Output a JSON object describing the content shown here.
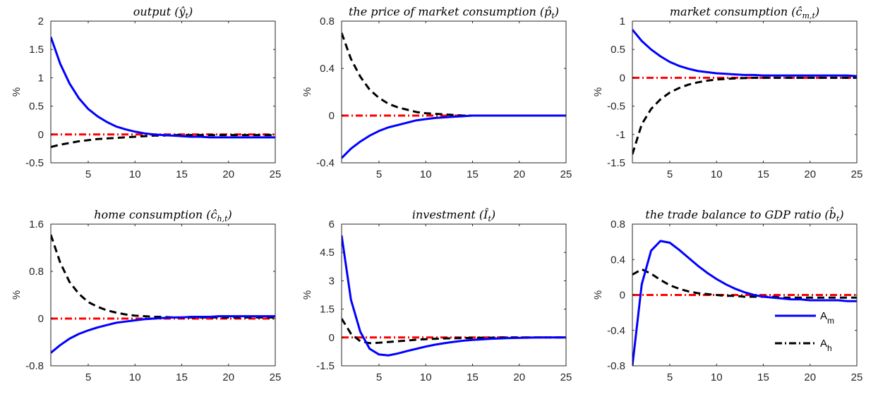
{
  "legend": {
    "entries": [
      {
        "base": "A",
        "sub": "m",
        "series": "A_m"
      },
      {
        "base": "A",
        "sub": "h",
        "series": "A_h"
      }
    ]
  },
  "colors": {
    "A_m": "#0000ff",
    "A_h": "#000000",
    "zero": "#ff0000",
    "axis": "#262626"
  },
  "chart_data": [
    {
      "type": "line",
      "title": "output (ŷ_t)",
      "title_parts": {
        "text": "output (",
        "sym": "ŷ",
        "sub": "t",
        "close": ")"
      },
      "xlabel": "",
      "ylabel": "%",
      "xlim": [
        1,
        25
      ],
      "ylim": [
        -0.5,
        2
      ],
      "xticks": [
        5,
        10,
        15,
        20,
        25
      ],
      "yticks": [
        -0.5,
        0,
        0.5,
        1,
        1.5,
        2
      ],
      "ytick_labels": [
        "-0.5",
        "0",
        "0.5",
        "1",
        "1.5",
        "2"
      ],
      "x": [
        1,
        2,
        3,
        4,
        5,
        6,
        7,
        8,
        9,
        10,
        11,
        12,
        13,
        14,
        15,
        16,
        17,
        18,
        19,
        20,
        21,
        22,
        23,
        24,
        25
      ],
      "series": [
        {
          "key": "A_m",
          "style": "solid",
          "values": [
            1.72,
            1.25,
            0.9,
            0.64,
            0.45,
            0.32,
            0.22,
            0.14,
            0.09,
            0.05,
            0.02,
            0.0,
            -0.01,
            -0.02,
            -0.03,
            -0.04,
            -0.04,
            -0.05,
            -0.05,
            -0.05,
            -0.05,
            -0.05,
            -0.05,
            -0.05,
            -0.05
          ]
        },
        {
          "key": "A_h",
          "style": "dashed",
          "values": [
            -0.22,
            -0.18,
            -0.15,
            -0.12,
            -0.1,
            -0.08,
            -0.07,
            -0.06,
            -0.05,
            -0.04,
            -0.03,
            -0.02,
            -0.02,
            -0.01,
            -0.01,
            -0.01,
            -0.01,
            -0.01,
            -0.01,
            -0.01,
            -0.01,
            -0.01,
            -0.01,
            -0.01,
            -0.01
          ]
        },
        {
          "key": "zero",
          "style": "dashdot",
          "values": [
            0,
            0,
            0,
            0,
            0,
            0,
            0,
            0,
            0,
            0,
            0,
            0,
            0,
            0,
            0,
            0,
            0,
            0,
            0,
            0,
            0,
            0,
            0,
            0,
            0
          ]
        }
      ]
    },
    {
      "type": "line",
      "title": "the price of market consumption (p̂_t)",
      "title_parts": {
        "text": "the price of market consumption (",
        "sym": "p̂",
        "sub": "t",
        "close": ")"
      },
      "xlabel": "",
      "ylabel": "%",
      "xlim": [
        1,
        25
      ],
      "ylim": [
        -0.4,
        0.8
      ],
      "xticks": [
        5,
        10,
        15,
        20,
        25
      ],
      "yticks": [
        -0.4,
        0,
        0.4,
        0.8
      ],
      "ytick_labels": [
        "-0.4",
        "0",
        "0.4",
        "0.8"
      ],
      "x": [
        1,
        2,
        3,
        4,
        5,
        6,
        7,
        8,
        9,
        10,
        11,
        12,
        13,
        14,
        15,
        16,
        17,
        18,
        19,
        20,
        21,
        22,
        23,
        24,
        25
      ],
      "series": [
        {
          "key": "A_m",
          "style": "solid",
          "values": [
            -0.36,
            -0.28,
            -0.22,
            -0.17,
            -0.13,
            -0.1,
            -0.08,
            -0.06,
            -0.04,
            -0.03,
            -0.02,
            -0.015,
            -0.01,
            -0.005,
            0,
            0,
            0,
            0,
            0,
            0,
            0,
            0,
            0,
            0,
            0
          ]
        },
        {
          "key": "A_h",
          "style": "dashed",
          "values": [
            0.7,
            0.48,
            0.33,
            0.22,
            0.15,
            0.1,
            0.07,
            0.05,
            0.03,
            0.02,
            0.015,
            0.01,
            0.005,
            0,
            0,
            0,
            0,
            0,
            0,
            0,
            0,
            0,
            0,
            0,
            0
          ]
        },
        {
          "key": "zero",
          "style": "dashdot",
          "values": [
            0,
            0,
            0,
            0,
            0,
            0,
            0,
            0,
            0,
            0,
            0,
            0,
            0,
            0,
            0,
            0,
            0,
            0,
            0,
            0,
            0,
            0,
            0,
            0,
            0
          ]
        }
      ]
    },
    {
      "type": "line",
      "title": "market consumption (ĉ_m,t)",
      "title_parts": {
        "text": "market consumption (",
        "sym": "ĉ",
        "sub": "m,t",
        "close": ")"
      },
      "xlabel": "",
      "ylabel": "%",
      "xlim": [
        1,
        25
      ],
      "ylim": [
        -1.5,
        1
      ],
      "xticks": [
        5,
        10,
        15,
        20,
        25
      ],
      "yticks": [
        -1.5,
        -1,
        -0.5,
        0,
        0.5,
        1
      ],
      "ytick_labels": [
        "-1.5",
        "-1",
        "-0.5",
        "0",
        "0.5",
        "1"
      ],
      "x": [
        1,
        2,
        3,
        4,
        5,
        6,
        7,
        8,
        9,
        10,
        11,
        12,
        13,
        14,
        15,
        16,
        17,
        18,
        19,
        20,
        21,
        22,
        23,
        24,
        25
      ],
      "series": [
        {
          "key": "A_m",
          "style": "solid",
          "values": [
            0.85,
            0.65,
            0.5,
            0.38,
            0.28,
            0.21,
            0.16,
            0.12,
            0.1,
            0.08,
            0.07,
            0.06,
            0.05,
            0.05,
            0.04,
            0.04,
            0.04,
            0.04,
            0.04,
            0.04,
            0.04,
            0.04,
            0.04,
            0.04,
            0.03
          ]
        },
        {
          "key": "A_h",
          "style": "dashed",
          "values": [
            -1.35,
            -0.82,
            -0.55,
            -0.38,
            -0.26,
            -0.18,
            -0.12,
            -0.08,
            -0.05,
            -0.03,
            -0.02,
            -0.01,
            -0.005,
            0,
            0,
            0,
            0,
            0,
            0,
            0,
            0,
            0,
            0,
            0,
            0
          ]
        },
        {
          "key": "zero",
          "style": "dashdot",
          "values": [
            0,
            0,
            0,
            0,
            0,
            0,
            0,
            0,
            0,
            0,
            0,
            0,
            0,
            0,
            0,
            0,
            0,
            0,
            0,
            0,
            0,
            0,
            0,
            0,
            0
          ]
        }
      ]
    },
    {
      "type": "line",
      "title": "home consumption (ĉ_h,t)",
      "title_parts": {
        "text": "home consumption (",
        "sym": "ĉ",
        "sub": "h,t",
        "close": ")"
      },
      "xlabel": "",
      "ylabel": "%",
      "xlim": [
        1,
        25
      ],
      "ylim": [
        -0.8,
        1.6
      ],
      "xticks": [
        5,
        10,
        15,
        20,
        25
      ],
      "yticks": [
        -0.8,
        0,
        0.8,
        1.6
      ],
      "ytick_labels": [
        "-0.8",
        "0",
        "0.8",
        "1.6"
      ],
      "x": [
        1,
        2,
        3,
        4,
        5,
        6,
        7,
        8,
        9,
        10,
        11,
        12,
        13,
        14,
        15,
        16,
        17,
        18,
        19,
        20,
        21,
        22,
        23,
        24,
        25
      ],
      "series": [
        {
          "key": "A_m",
          "style": "solid",
          "values": [
            -0.58,
            -0.45,
            -0.34,
            -0.26,
            -0.2,
            -0.15,
            -0.11,
            -0.07,
            -0.05,
            -0.03,
            -0.01,
            0,
            0.01,
            0.02,
            0.02,
            0.03,
            0.03,
            0.03,
            0.04,
            0.04,
            0.04,
            0.04,
            0.04,
            0.04,
            0.04
          ]
        },
        {
          "key": "A_h",
          "style": "dashed",
          "values": [
            1.42,
            0.95,
            0.62,
            0.42,
            0.28,
            0.2,
            0.14,
            0.1,
            0.07,
            0.05,
            0.04,
            0.03,
            0.03,
            0.02,
            0.02,
            0.02,
            0.02,
            0.02,
            0.02,
            0.02,
            0.02,
            0.02,
            0.02,
            0.02,
            0.02
          ]
        },
        {
          "key": "zero",
          "style": "dashdot",
          "values": [
            0,
            0,
            0,
            0,
            0,
            0,
            0,
            0,
            0,
            0,
            0,
            0,
            0,
            0,
            0,
            0,
            0,
            0,
            0,
            0,
            0,
            0,
            0,
            0,
            0
          ]
        }
      ]
    },
    {
      "type": "line",
      "title": "investment (Î_t)",
      "title_parts": {
        "text": "investment (",
        "sym": "Î",
        "sub": "t",
        "close": ")"
      },
      "xlabel": "",
      "ylabel": "%",
      "xlim": [
        1,
        25
      ],
      "ylim": [
        -1.5,
        6
      ],
      "xticks": [
        5,
        10,
        15,
        20,
        25
      ],
      "yticks": [
        -1.5,
        0,
        1.5,
        3,
        4.5,
        6
      ],
      "ytick_labels": [
        "-1.5",
        "0",
        "1.5",
        "3",
        "4.5",
        "6"
      ],
      "x": [
        1,
        2,
        3,
        4,
        5,
        6,
        7,
        8,
        9,
        10,
        11,
        12,
        13,
        14,
        15,
        16,
        17,
        18,
        19,
        20,
        21,
        22,
        23,
        24,
        25
      ],
      "series": [
        {
          "key": "A_m",
          "style": "solid",
          "values": [
            5.4,
            2.0,
            0.3,
            -0.6,
            -0.9,
            -0.95,
            -0.85,
            -0.72,
            -0.6,
            -0.48,
            -0.38,
            -0.3,
            -0.23,
            -0.17,
            -0.13,
            -0.1,
            -0.07,
            -0.05,
            -0.03,
            -0.02,
            -0.01,
            0,
            0,
            0,
            0
          ]
        },
        {
          "key": "A_h",
          "style": "dashed",
          "values": [
            1.0,
            0.2,
            -0.2,
            -0.3,
            -0.28,
            -0.24,
            -0.2,
            -0.16,
            -0.12,
            -0.09,
            -0.07,
            -0.05,
            -0.04,
            -0.03,
            -0.02,
            -0.01,
            -0.01,
            0,
            0,
            0,
            0,
            0,
            0,
            0,
            0
          ]
        },
        {
          "key": "zero",
          "style": "dashdot",
          "values": [
            0,
            0,
            0,
            0,
            0,
            0,
            0,
            0,
            0,
            0,
            0,
            0,
            0,
            0,
            0,
            0,
            0,
            0,
            0,
            0,
            0,
            0,
            0,
            0,
            0
          ]
        }
      ]
    },
    {
      "type": "line",
      "title": "the trade balance to GDP ratio (b̂_t)",
      "title_parts": {
        "text": "the trade balance to GDP ratio (",
        "sym": "b̂",
        "sub": "t",
        "close": ")"
      },
      "xlabel": "",
      "ylabel": "%",
      "xlim": [
        1,
        25
      ],
      "ylim": [
        -0.8,
        0.8
      ],
      "xticks": [
        5,
        10,
        15,
        20,
        25
      ],
      "yticks": [
        -0.8,
        -0.4,
        0,
        0.4,
        0.8
      ],
      "ytick_labels": [
        "-0.8",
        "-0.4",
        "0",
        "0.4",
        "0.8"
      ],
      "x": [
        1,
        2,
        3,
        4,
        5,
        6,
        7,
        8,
        9,
        10,
        11,
        12,
        13,
        14,
        15,
        16,
        17,
        18,
        19,
        20,
        21,
        22,
        23,
        24,
        25
      ],
      "series": [
        {
          "key": "A_m",
          "style": "solid",
          "values": [
            -0.8,
            0.12,
            0.5,
            0.61,
            0.59,
            0.51,
            0.42,
            0.33,
            0.25,
            0.18,
            0.12,
            0.07,
            0.03,
            0.0,
            -0.02,
            -0.03,
            -0.04,
            -0.05,
            -0.05,
            -0.06,
            -0.06,
            -0.06,
            -0.06,
            -0.07,
            -0.07
          ]
        },
        {
          "key": "A_h",
          "style": "dashed",
          "values": [
            0.23,
            0.29,
            0.24,
            0.17,
            0.11,
            0.07,
            0.04,
            0.02,
            0.01,
            0.0,
            -0.01,
            -0.01,
            -0.02,
            -0.02,
            -0.02,
            -0.02,
            -0.03,
            -0.03,
            -0.03,
            -0.03,
            -0.03,
            -0.03,
            -0.03,
            -0.03,
            -0.03
          ]
        },
        {
          "key": "zero",
          "style": "dashdot",
          "values": [
            0,
            0,
            0,
            0,
            0,
            0,
            0,
            0,
            0,
            0,
            0,
            0,
            0,
            0,
            0,
            0,
            0,
            0,
            0,
            0,
            0,
            0,
            0,
            0,
            0
          ]
        }
      ]
    }
  ]
}
